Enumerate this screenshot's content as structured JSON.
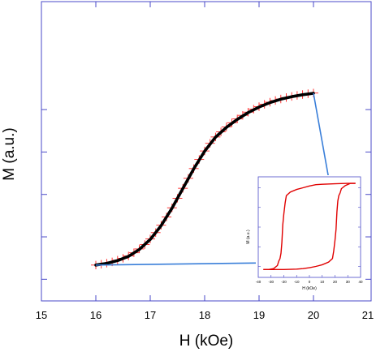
{
  "chart_data": [
    {
      "type": "scatter",
      "xlabel": "H (kOe)",
      "ylabel": "M (a.u.)",
      "xlim": [
        15,
        21
      ],
      "ylim": [
        0,
        1.06
      ],
      "x_ticks": [
        "15",
        "16",
        "17",
        "18",
        "19",
        "20",
        "21"
      ],
      "y_tick_values": [
        0.102,
        0.302,
        0.502,
        0.702,
        0.902
      ],
      "y_tick_labels_shown": false,
      "grid": false,
      "series": [
        {
          "style": "red points with vertical error bars",
          "x": [
            16.0,
            16.1,
            16.2,
            16.3,
            16.4,
            16.5,
            16.6,
            16.7,
            16.8,
            16.9,
            17.0,
            17.1,
            17.2,
            17.3,
            17.4,
            17.5,
            17.6,
            17.7,
            17.8,
            17.9,
            18.0,
            18.1,
            18.2,
            18.3,
            18.4,
            18.5,
            18.6,
            18.7,
            18.8,
            18.9,
            19.0,
            19.1,
            19.2,
            19.3,
            19.4,
            19.5,
            19.6,
            19.7,
            19.8,
            19.9,
            20.0
          ],
          "y": [
            0.169,
            0.173,
            0.178,
            0.184,
            0.192,
            0.201,
            0.212,
            0.227,
            0.245,
            0.266,
            0.292,
            0.322,
            0.357,
            0.396,
            0.439,
            0.484,
            0.531,
            0.578,
            0.624,
            0.667,
            0.707,
            0.743,
            0.773,
            0.797,
            0.82,
            0.84,
            0.858,
            0.875,
            0.89,
            0.904,
            0.916,
            0.927,
            0.937,
            0.945,
            0.952,
            0.959,
            0.964,
            0.969,
            0.973,
            0.977,
            0.98
          ],
          "y_error": 0.02
        },
        {
          "style": "black fitted curve",
          "x": [
            16.0,
            16.2,
            16.4,
            16.6,
            16.8,
            17.0,
            17.2,
            17.4,
            17.6,
            17.8,
            18.0,
            18.2,
            18.4,
            18.6,
            18.8,
            19.0,
            19.2,
            19.4,
            19.6,
            19.8,
            20.0
          ],
          "y": [
            0.169,
            0.177,
            0.19,
            0.21,
            0.243,
            0.29,
            0.355,
            0.437,
            0.53,
            0.623,
            0.706,
            0.772,
            0.818,
            0.856,
            0.888,
            0.914,
            0.935,
            0.951,
            0.963,
            0.972,
            0.979
          ]
        }
      ],
      "annotations": [
        {
          "style": "blue connector line",
          "from": [
            16.0,
            0.169
          ],
          "to_point_on": "inset lower branch"
        },
        {
          "style": "blue connector line",
          "from": [
            20.0,
            0.979
          ],
          "to_point_on": "inset upper branch"
        }
      ],
      "colors": {
        "data": "#ff0000",
        "fit": "#000000",
        "axes": "#4a4ac8",
        "connector": "#3a7fd9"
      }
    },
    {
      "type": "line",
      "position": "inset lower-right",
      "xlabel": "H (kOe)",
      "ylabel": "M (a.u.)",
      "xlim": [
        -40,
        40
      ],
      "x_ticks": [
        "-40",
        "-30",
        "-20",
        "-10",
        "0",
        "10",
        "20",
        "30",
        "40"
      ],
      "ylim": [
        -1.15,
        1.15
      ],
      "y_tick_labels_shown": false,
      "grid": false,
      "series": [
        {
          "style": "red hysteresis loop, descending branch",
          "x": [
            36,
            30,
            20,
            10,
            5,
            0,
            -5,
            -10,
            -15,
            -18,
            -19,
            -20,
            -20.8,
            -21.5,
            -22.2,
            -23,
            -24,
            -25,
            -28,
            -32,
            -36
          ],
          "y": [
            1.0,
            1.0,
            0.99,
            0.98,
            0.97,
            0.94,
            0.9,
            0.86,
            0.8,
            0.72,
            0.55,
            0.3,
            0.05,
            -0.35,
            -0.6,
            -0.72,
            -0.78,
            -0.88,
            -0.95,
            -0.97,
            -0.97
          ]
        },
        {
          "style": "red hysteresis loop, ascending branch",
          "x": [
            -36,
            -30,
            -20,
            -10,
            -5,
            0,
            5,
            10,
            15,
            18,
            19,
            20,
            20.8,
            21.5,
            22.2,
            23,
            24,
            25,
            28,
            32,
            36
          ],
          "y": [
            -0.97,
            -0.97,
            -0.97,
            -0.96,
            -0.95,
            -0.93,
            -0.9,
            -0.86,
            -0.8,
            -0.72,
            -0.55,
            -0.3,
            -0.05,
            0.35,
            0.6,
            0.72,
            0.78,
            0.88,
            0.95,
            1.0,
            1.0
          ]
        }
      ],
      "colors": {
        "loop": "#e00000",
        "axes": "#4a4ac8"
      }
    }
  ]
}
